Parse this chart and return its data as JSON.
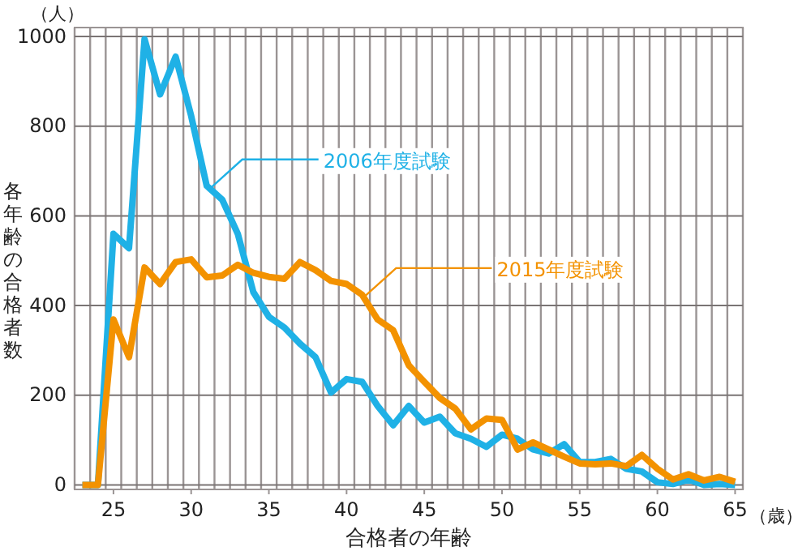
{
  "chart_data": {
    "type": "line",
    "xlabel": "合格者の年齢",
    "ylabel": "各年齢の合格者数",
    "x": [
      23,
      24,
      25,
      26,
      27,
      28,
      29,
      30,
      31,
      32,
      33,
      34,
      35,
      36,
      37,
      38,
      39,
      40,
      41,
      42,
      43,
      44,
      45,
      46,
      47,
      48,
      49,
      50,
      51,
      52,
      53,
      54,
      55,
      56,
      57,
      58,
      59,
      60,
      61,
      62,
      63,
      64,
      65
    ],
    "series": [
      {
        "name": "2006年度試験",
        "color": "#1fb1e6",
        "values": [
          0,
          0,
          560,
          528,
          994,
          871,
          955,
          823,
          667,
          636,
          560,
          430,
          375,
          351,
          315,
          285,
          206,
          236,
          230,
          176,
          133,
          176,
          139,
          152,
          115,
          103,
          85,
          112,
          103,
          79,
          70,
          91,
          51,
          51,
          58,
          36,
          30,
          6,
          2,
          12,
          0,
          2,
          0
        ]
      },
      {
        "name": "2015年度試験",
        "color": "#f39200",
        "values": [
          0,
          0,
          369,
          285,
          485,
          448,
          497,
          503,
          463,
          467,
          491,
          473,
          464,
          460,
          497,
          479,
          455,
          448,
          424,
          369,
          345,
          267,
          230,
          194,
          170,
          124,
          148,
          145,
          79,
          95,
          79,
          63,
          48,
          46,
          48,
          42,
          67,
          36,
          12,
          24,
          10,
          18,
          7
        ]
      }
    ],
    "xlim": [
      22.5,
      65.5
    ],
    "xticks": [
      {
        "value": 22.5,
        "label": null
      },
      {
        "value": 23.5,
        "label": null
      },
      {
        "value": 24.5,
        "label": null
      },
      25,
      {
        "value": 25.5,
        "label": null
      },
      {
        "value": 26.5,
        "label": null
      },
      {
        "value": 27.5,
        "label": null
      },
      {
        "value": 28.5,
        "label": null
      },
      {
        "value": 29.5,
        "label": null
      },
      30,
      {
        "value": 30.5,
        "label": null
      },
      {
        "value": 31.5,
        "label": null
      },
      {
        "value": 32.5,
        "label": null
      },
      {
        "value": 33.5,
        "label": null
      },
      {
        "value": 34.5,
        "label": null
      },
      35,
      {
        "value": 35.5,
        "label": null
      },
      {
        "value": 36.5,
        "label": null
      },
      {
        "value": 37.5,
        "label": null
      },
      {
        "value": 38.5,
        "label": null
      },
      {
        "value": 39.5,
        "label": null
      },
      40,
      {
        "value": 40.5,
        "label": null
      },
      {
        "value": 41.5,
        "label": null
      },
      {
        "value": 42.5,
        "label": null
      },
      {
        "value": 43.5,
        "label": null
      },
      {
        "value": 44.5,
        "label": null
      },
      45,
      {
        "value": 45.5,
        "label": null
      },
      {
        "value": 46.5,
        "label": null
      },
      {
        "value": 47.5,
        "label": null
      },
      {
        "value": 48.5,
        "label": null
      },
      {
        "value": 49.5,
        "label": null
      },
      50,
      {
        "value": 50.5,
        "label": null
      },
      {
        "value": 51.5,
        "label": null
      },
      {
        "value": 52.5,
        "label": null
      },
      {
        "value": 53.5,
        "label": null
      },
      {
        "value": 54.5,
        "label": null
      },
      55,
      {
        "value": 55.5,
        "label": null
      },
      {
        "value": 56.5,
        "label": null
      },
      {
        "value": 57.5,
        "label": null
      },
      {
        "value": 58.5,
        "label": null
      },
      {
        "value": 59.5,
        "label": null
      },
      60,
      {
        "value": 60.5,
        "label": null
      },
      {
        "value": 61.5,
        "label": null
      },
      {
        "value": 62.5,
        "label": null
      },
      {
        "value": 63.5,
        "label": null
      },
      {
        "value": 64.5,
        "label": null
      },
      65,
      {
        "value": 65.5,
        "label": null
      }
    ],
    "ylim": [
      -10,
      1020
    ],
    "yticks": [
      0,
      200,
      400,
      600,
      800,
      1000
    ],
    "grid": true,
    "legend": false,
    "marker": "none",
    "line_style": "solid",
    "annotations": [
      "（人）",
      "（歳）"
    ]
  }
}
